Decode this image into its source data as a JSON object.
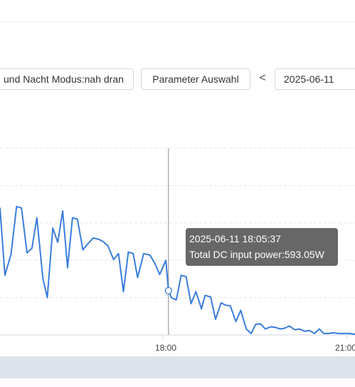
{
  "toolbar": {
    "mode_label": "und Nacht Modus:nah dran",
    "param_label": "Parameter Auswahl",
    "prev_symbol": "<",
    "date_value": "2025-06-11"
  },
  "tooltip": {
    "time": "2025-06-11 18:05:37",
    "metric_line": "Total DC input power:593.05W"
  },
  "chart_data": {
    "type": "line",
    "x_unit": "hour of day",
    "x_ticks": [
      {
        "value": 18,
        "label": "18:00"
      },
      {
        "value": 21,
        "label": "21:00"
      }
    ],
    "xlim": [
      15.35,
      21.13
    ],
    "ylim": [
      0,
      2500
    ],
    "grid_lines": 5,
    "series_color": "#3b7ddd",
    "highlight": {
      "x": 18.093,
      "y": 593.05
    },
    "series": [
      {
        "values": [
          [
            15.35,
            1700
          ],
          [
            15.43,
            800
          ],
          [
            15.53,
            1080
          ],
          [
            15.62,
            1720
          ],
          [
            15.7,
            1700
          ],
          [
            15.79,
            1100
          ],
          [
            15.87,
            1160
          ],
          [
            15.95,
            1570
          ],
          [
            16.05,
            750
          ],
          [
            16.12,
            500
          ],
          [
            16.21,
            1430
          ],
          [
            16.29,
            1240
          ],
          [
            16.37,
            1660
          ],
          [
            16.45,
            900
          ],
          [
            16.53,
            1570
          ],
          [
            16.61,
            1550
          ],
          [
            16.7,
            1140
          ],
          [
            16.78,
            1220
          ],
          [
            16.87,
            1300
          ],
          [
            16.96,
            1280
          ],
          [
            17.03,
            1250
          ],
          [
            17.11,
            1190
          ],
          [
            17.2,
            1010
          ],
          [
            17.28,
            1090
          ],
          [
            17.36,
            580
          ],
          [
            17.44,
            1110
          ],
          [
            17.52,
            1090
          ],
          [
            17.59,
            770
          ],
          [
            17.69,
            1090
          ],
          [
            17.79,
            1070
          ],
          [
            17.87,
            960
          ],
          [
            17.95,
            810
          ],
          [
            18.05,
            1000
          ],
          [
            18.093,
            593.05
          ],
          [
            18.14,
            500
          ],
          [
            18.22,
            470
          ],
          [
            18.3,
            800
          ],
          [
            18.38,
            780
          ],
          [
            18.46,
            420
          ],
          [
            18.54,
            580
          ],
          [
            18.63,
            350
          ],
          [
            18.69,
            530
          ],
          [
            18.78,
            510
          ],
          [
            18.86,
            210
          ],
          [
            18.95,
            430
          ],
          [
            19.02,
            400
          ],
          [
            19.1,
            390
          ],
          [
            19.19,
            180
          ],
          [
            19.27,
            330
          ],
          [
            19.36,
            80
          ],
          [
            19.44,
            20
          ],
          [
            19.51,
            140
          ],
          [
            19.59,
            150
          ],
          [
            19.67,
            80
          ],
          [
            19.76,
            110
          ],
          [
            19.84,
            100
          ],
          [
            19.91,
            80
          ],
          [
            19.98,
            90
          ],
          [
            20.06,
            120
          ],
          [
            20.15,
            70
          ],
          [
            20.23,
            80
          ],
          [
            20.31,
            50
          ],
          [
            20.39,
            60
          ],
          [
            20.47,
            20
          ],
          [
            20.55,
            80
          ],
          [
            20.62,
            20
          ],
          [
            20.7,
            20
          ],
          [
            20.77,
            30
          ],
          [
            20.86,
            20
          ],
          [
            20.95,
            20
          ],
          [
            21.04,
            20
          ],
          [
            21.13,
            10
          ]
        ]
      }
    ]
  }
}
